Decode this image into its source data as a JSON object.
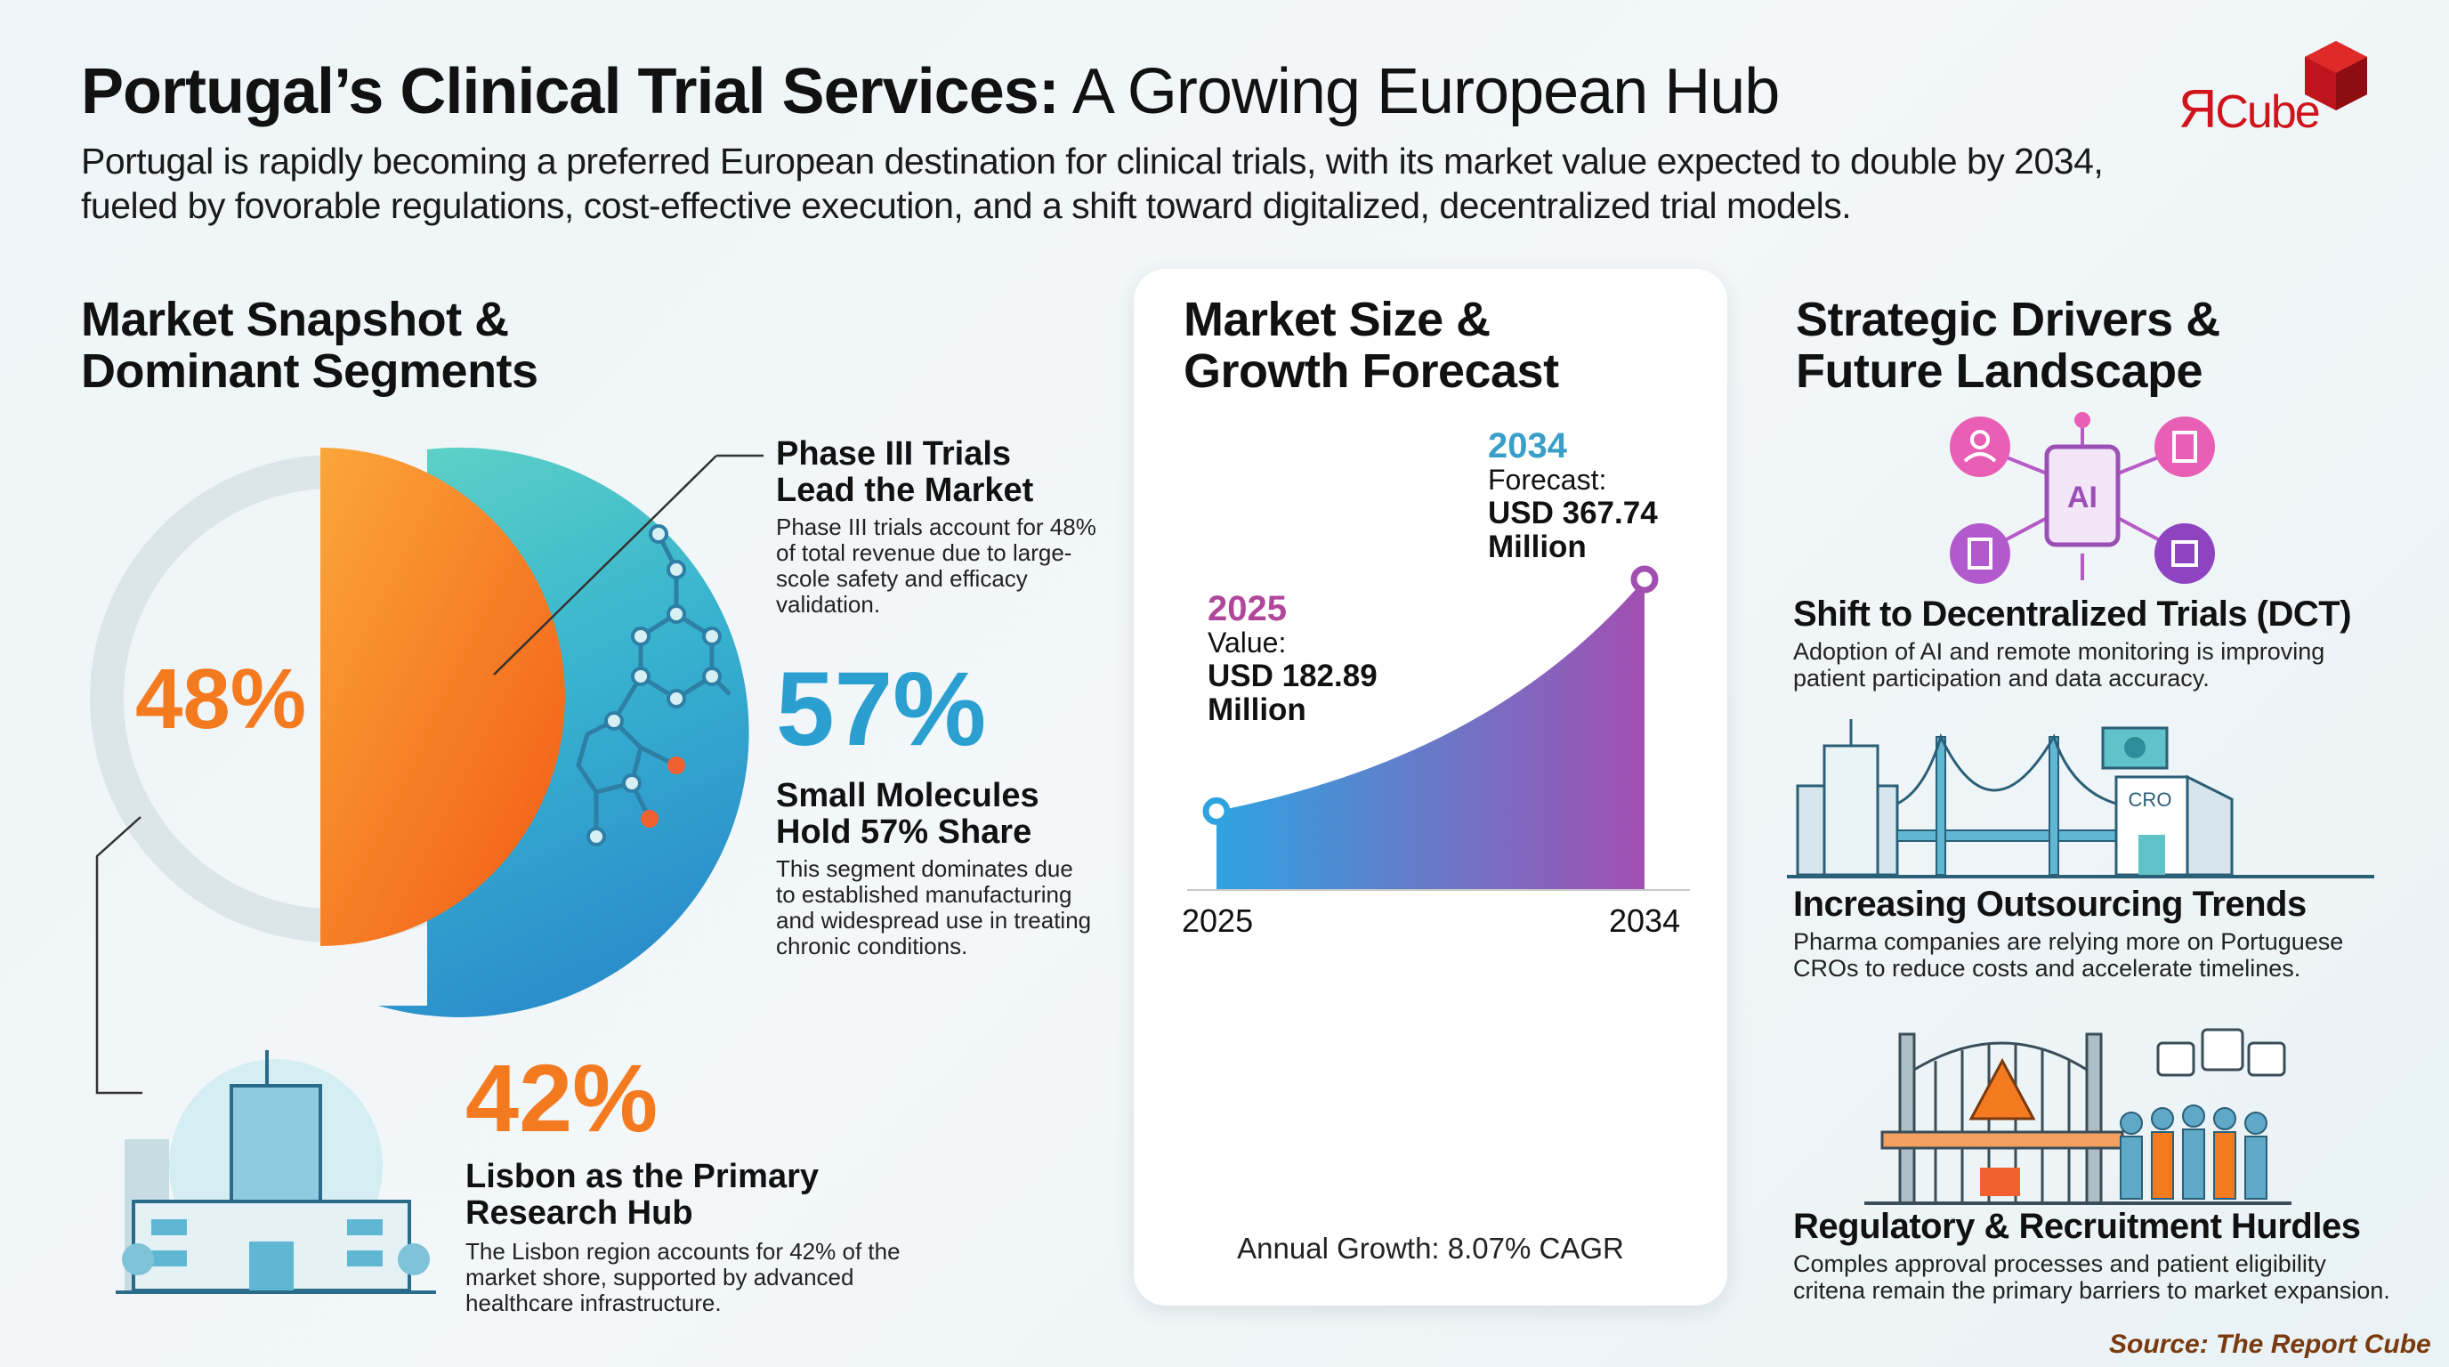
{
  "header": {
    "title_bold": "Portugal’s Clinical Trial Services:",
    "title_regular": " A Growing European Hub",
    "subtitle_line1": "Portugal is rapidly becoming a preferred European destination for clinical trials, with its market value expected to double by 2034,",
    "subtitle_line2": "fueled by fovorable regulations, cost-effective execution, and a shift toward digitalized, decentralized trial models.",
    "logo_text": "ЯCube"
  },
  "left": {
    "heading_line1": "Market Snapshot &",
    "heading_line2": "Dominant Segments",
    "donut_value": "48%",
    "phase3": {
      "title_line1": "Phase III Trials",
      "title_line2": "Lead the Market",
      "body": "Phase III trials account for 48% of total revenue due to large-scole safety and efficacy validation."
    },
    "small_molecules": {
      "value": "57%",
      "title_line1": "Small Molecules",
      "title_line2": "Hold 57% Share",
      "body": "This segment dominates due to established manufacturing and widespread use in treating chronic conditions."
    },
    "lisbon": {
      "value": "42%",
      "title_line1": "Lisbon as the Primary",
      "title_line2": "Research Hub",
      "body": "The Lisbon region accounts for 42% of the market shore, supported by advanced healthcare infrastructure."
    }
  },
  "middle": {
    "heading_line1": "Market Size &",
    "heading_line2": "Growth Forecast",
    "start": {
      "year": "2025",
      "label": "Value:",
      "value_line1": "USD 182.89",
      "value_line2": "Million"
    },
    "end": {
      "year": "2034",
      "label": "Forecast:",
      "value_line1": "USD 367.74",
      "value_line2": "Million"
    },
    "x_start": "2025",
    "x_end": "2034",
    "growth": "Annual Growth: 8.07% CAGR"
  },
  "chart_data": {
    "type": "area",
    "x": [
      2025,
      2034
    ],
    "values": [
      182.89,
      367.74
    ],
    "unit": "USD Million",
    "tick_labels": [
      "2025",
      "2034"
    ],
    "cagr_percent": 8.07
  },
  "right": {
    "heading_line1": "Strategic Drivers &",
    "heading_line2": "Future Landscape",
    "items": [
      {
        "title": "Shift to Decentralized Trials (DCT)",
        "body_line1": "Adoption of AI and remote monitoring is improving",
        "body_line2": "patient participation and data accuracy.",
        "icon_text": "AI"
      },
      {
        "title": "Increasing Outsourcing Trends",
        "body_line1": "Pharma companies are relying more on Portuguese",
        "body_line2": "CROs to reduce costs and accelerate timelines.",
        "icon_text": "CRO"
      },
      {
        "title": "Regulatory & Recruitment Hurdles",
        "body_line1": "Comples approval processes and patient eligibility",
        "body_line2": "critena remain the primary barriers to market expansion."
      }
    ]
  },
  "footer": {
    "source": "Source: The Report Cube"
  },
  "colors": {
    "orange": "#f47a20",
    "blue": "#2a9fd0",
    "purple": "#9b4fb5",
    "magenta": "#b0479a",
    "source": "#7a3a10"
  }
}
